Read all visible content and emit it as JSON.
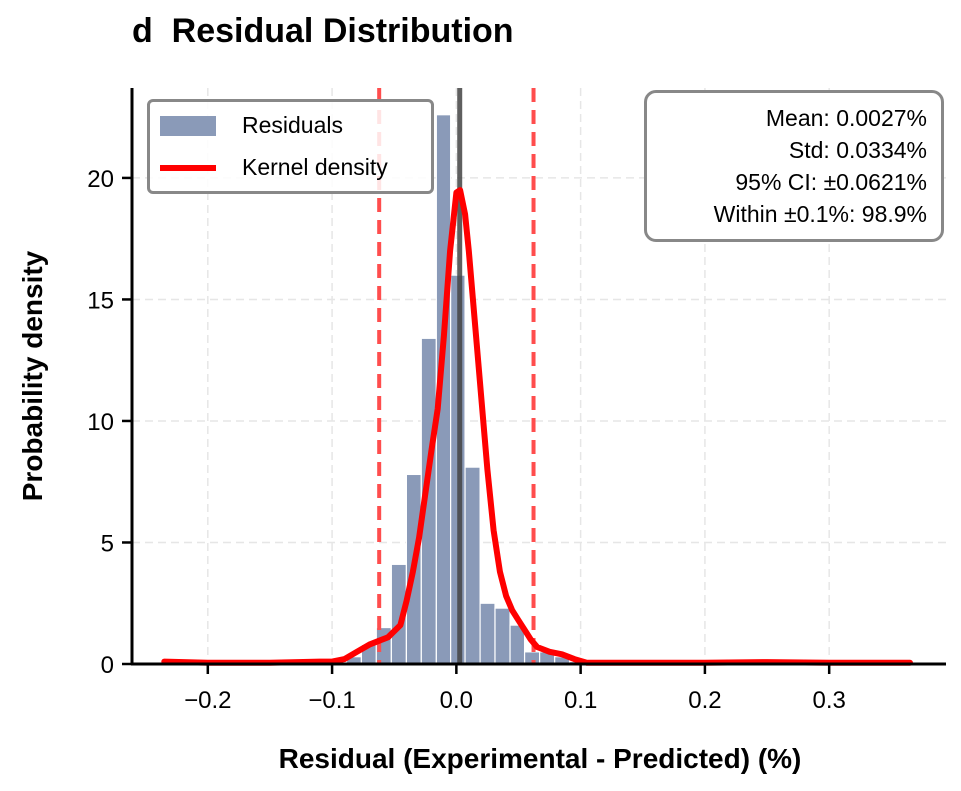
{
  "title": "d  Residual Distribution",
  "chart_data": {
    "type": "bar",
    "title": "d  Residual Distribution",
    "xlabel": "Residual (Experimental - Predicted) (%)",
    "ylabel": "Probability density",
    "xlim": [
      -0.261,
      0.394
    ],
    "ylim": [
      0,
      23.7
    ],
    "xticks": [
      -0.2,
      -0.1,
      0.0,
      0.1,
      0.2,
      0.3
    ],
    "xtick_labels": [
      "−0.2",
      "−0.1",
      "0.0",
      "0.1",
      "0.2",
      "0.3"
    ],
    "yticks": [
      0,
      5,
      10,
      15,
      20
    ],
    "ytick_labels": [
      "0",
      "5",
      "10",
      "15",
      "20"
    ],
    "grid": true,
    "legend_placement": "top-left",
    "histogram": {
      "name": "Residuals",
      "color": "#8a9ab8",
      "bin_edges": [
        -0.0884,
        -0.0764,
        -0.0644,
        -0.0523,
        -0.0402,
        -0.0282,
        -0.0161,
        -0.0046,
        0.007,
        0.0191,
        0.0311,
        0.0432,
        0.0549,
        0.067,
        0.0791,
        0.0911,
        0.1024
      ],
      "values": [
        0.3,
        0.8,
        1.5,
        4.1,
        7.8,
        13.4,
        22.6,
        16.0,
        8.1,
        2.5,
        2.3,
        1.6,
        0.5,
        0.5,
        0.3,
        0.1
      ]
    },
    "kde": {
      "name": "Kernel density",
      "color": "#ff0000",
      "x": [
        -0.235,
        -0.2,
        -0.15,
        -0.11,
        -0.1,
        -0.09,
        -0.08,
        -0.07,
        -0.06,
        -0.055,
        -0.045,
        -0.04,
        -0.035,
        -0.03,
        -0.025,
        -0.02,
        -0.015,
        -0.01,
        -0.005,
        0.0,
        0.003,
        0.007,
        0.01,
        0.015,
        0.02,
        0.025,
        0.03,
        0.035,
        0.04,
        0.045,
        0.05,
        0.055,
        0.06,
        0.065,
        0.075,
        0.085,
        0.095,
        0.105,
        0.15,
        0.2,
        0.25,
        0.3,
        0.365
      ],
      "y": [
        0.1,
        0.05,
        0.05,
        0.1,
        0.1,
        0.2,
        0.5,
        0.8,
        1.0,
        1.1,
        1.6,
        2.6,
        3.8,
        5.2,
        7.0,
        8.8,
        10.5,
        13.5,
        17.0,
        19.4,
        19.5,
        18.5,
        17.0,
        14.0,
        11.0,
        8.0,
        5.5,
        3.8,
        2.8,
        2.2,
        1.8,
        1.4,
        1.0,
        0.7,
        0.5,
        0.4,
        0.2,
        0.05,
        0.05,
        0.05,
        0.08,
        0.05,
        0.05
      ]
    },
    "mean_line": {
      "x": 0.0027,
      "color": "#444444"
    },
    "ci_lines": {
      "x": [
        -0.0621,
        0.0621
      ],
      "color": "#ff4d4d"
    }
  },
  "legend": {
    "items": [
      {
        "label": "Residuals",
        "color": "#8a9ab8"
      },
      {
        "label": "Kernel density",
        "color": "#ff0000"
      }
    ]
  },
  "stats": {
    "mean": "Mean: 0.0027%",
    "std": "Std: 0.0334%",
    "ci": "95% CI: ±0.0621%",
    "within": "Within ±0.1%: 98.9%"
  }
}
